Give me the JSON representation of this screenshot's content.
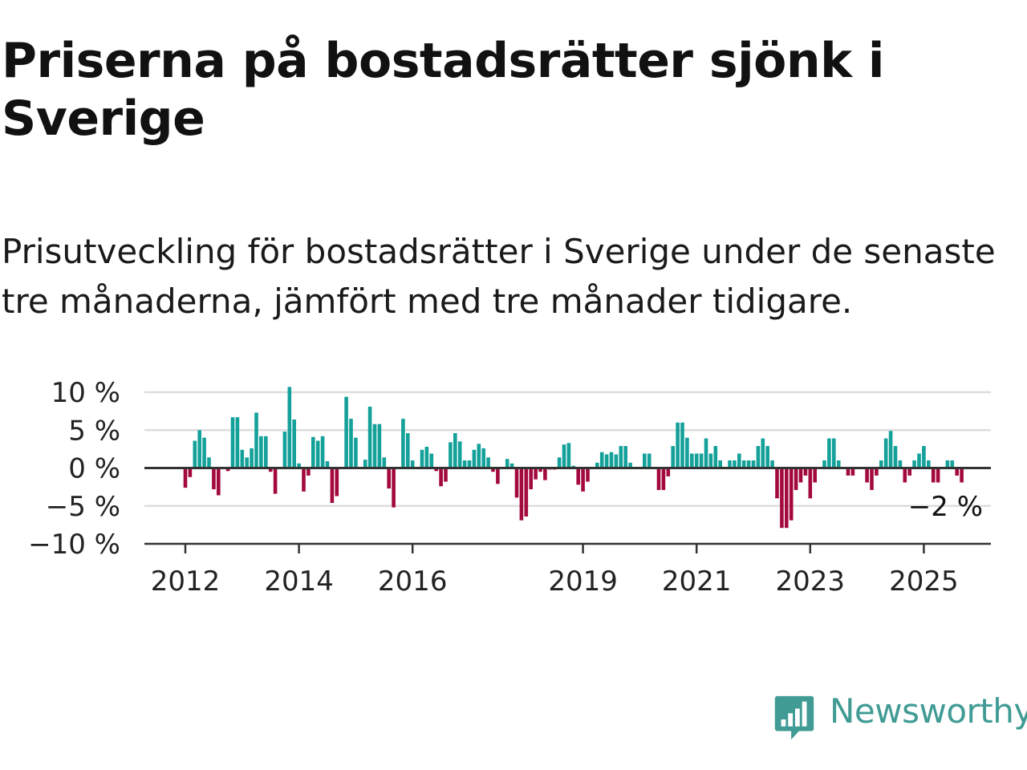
{
  "title": "Priserna på bostadsrätter sjönk i Sverige",
  "subtitle": "Prisutveckling för bostadsrätter i Sverige under de senaste tre månaderna, jämfört med tre månader tidigare.",
  "brand": {
    "name": "Newsworthy",
    "color": "#3f9b94",
    "icon": "newsworthy-logo-icon"
  },
  "chart_data": {
    "type": "bar",
    "title": "",
    "xlabel": "",
    "ylabel": "",
    "ylim": [
      -10,
      10
    ],
    "y_ticks": [
      10,
      5,
      0,
      -5,
      -10
    ],
    "y_tick_labels": [
      "10 %",
      "5 %",
      "0 %",
      "−5 %",
      "−10 %"
    ],
    "x_ticks": [
      2012,
      2014,
      2016,
      2019,
      2021,
      2023,
      2025
    ],
    "x_tick_labels": [
      "2012",
      "2014",
      "2016",
      "2019",
      "2021",
      "2023",
      "2025"
    ],
    "grid": true,
    "colors": {
      "positive": "#14a19a",
      "negative": "#a3093e",
      "grid": "#dddddd",
      "zero": "#333333"
    },
    "last_value_label": "−2 %",
    "start": "2012-01",
    "end": "2025-07",
    "frequency": "monthly",
    "values": [
      -2.6,
      -1.2,
      3.6,
      5.0,
      4.0,
      1.4,
      -2.8,
      -3.6,
      0.0,
      -0.4,
      6.7,
      6.7,
      2.4,
      1.4,
      2.6,
      7.3,
      4.2,
      4.2,
      -0.5,
      -3.4,
      0.0,
      4.8,
      10.7,
      6.4,
      0.6,
      -3.1,
      -1.0,
      4.1,
      3.6,
      4.2,
      0.9,
      -4.6,
      -3.7,
      0.0,
      9.4,
      6.5,
      4.0,
      0.0,
      1.1,
      8.1,
      5.8,
      5.8,
      1.4,
      -2.7,
      -5.2,
      0.0,
      6.5,
      4.6,
      1.0,
      0.0,
      2.4,
      2.8,
      1.9,
      -0.4,
      -2.4,
      -1.8,
      3.4,
      4.6,
      3.5,
      1.0,
      1.0,
      2.4,
      3.2,
      2.6,
      1.4,
      -0.5,
      -2.1,
      0.0,
      1.2,
      0.6,
      -3.9,
      -6.9,
      -6.4,
      -2.8,
      -1.5,
      -0.5,
      -1.6,
      -0.2,
      -0.2,
      1.4,
      3.1,
      3.3,
      0.3,
      -2.2,
      -3.1,
      -1.8,
      0.0,
      0.7,
      2.1,
      1.8,
      2.1,
      1.8,
      2.9,
      2.9,
      0.7,
      0.0,
      0.0,
      1.9,
      1.9,
      0.0,
      -2.9,
      -2.9,
      -1.1,
      2.9,
      6.0,
      6.0,
      4.0,
      1.9,
      1.9,
      1.9,
      3.9,
      1.9,
      2.9,
      1.0,
      0.0,
      1.0,
      1.0,
      1.9,
      1.0,
      1.0,
      1.0,
      2.9,
      3.9,
      2.9,
      1.0,
      -4.0,
      -7.9,
      -7.9,
      -6.9,
      -2.9,
      -1.9,
      -1.0,
      -4.0,
      -1.9,
      0.0,
      1.0,
      3.9,
      3.9,
      1.0,
      0.0,
      -1.0,
      -1.0,
      0.0,
      0.0,
      -1.9,
      -2.9,
      -1.0,
      1.0,
      3.9,
      4.9,
      2.9,
      1.0,
      -1.9,
      -1.0,
      1.0,
      1.9,
      2.9,
      1.0,
      -1.9,
      -1.9,
      0.0,
      1.0,
      1.0,
      -1.0,
      -1.9
    ]
  }
}
